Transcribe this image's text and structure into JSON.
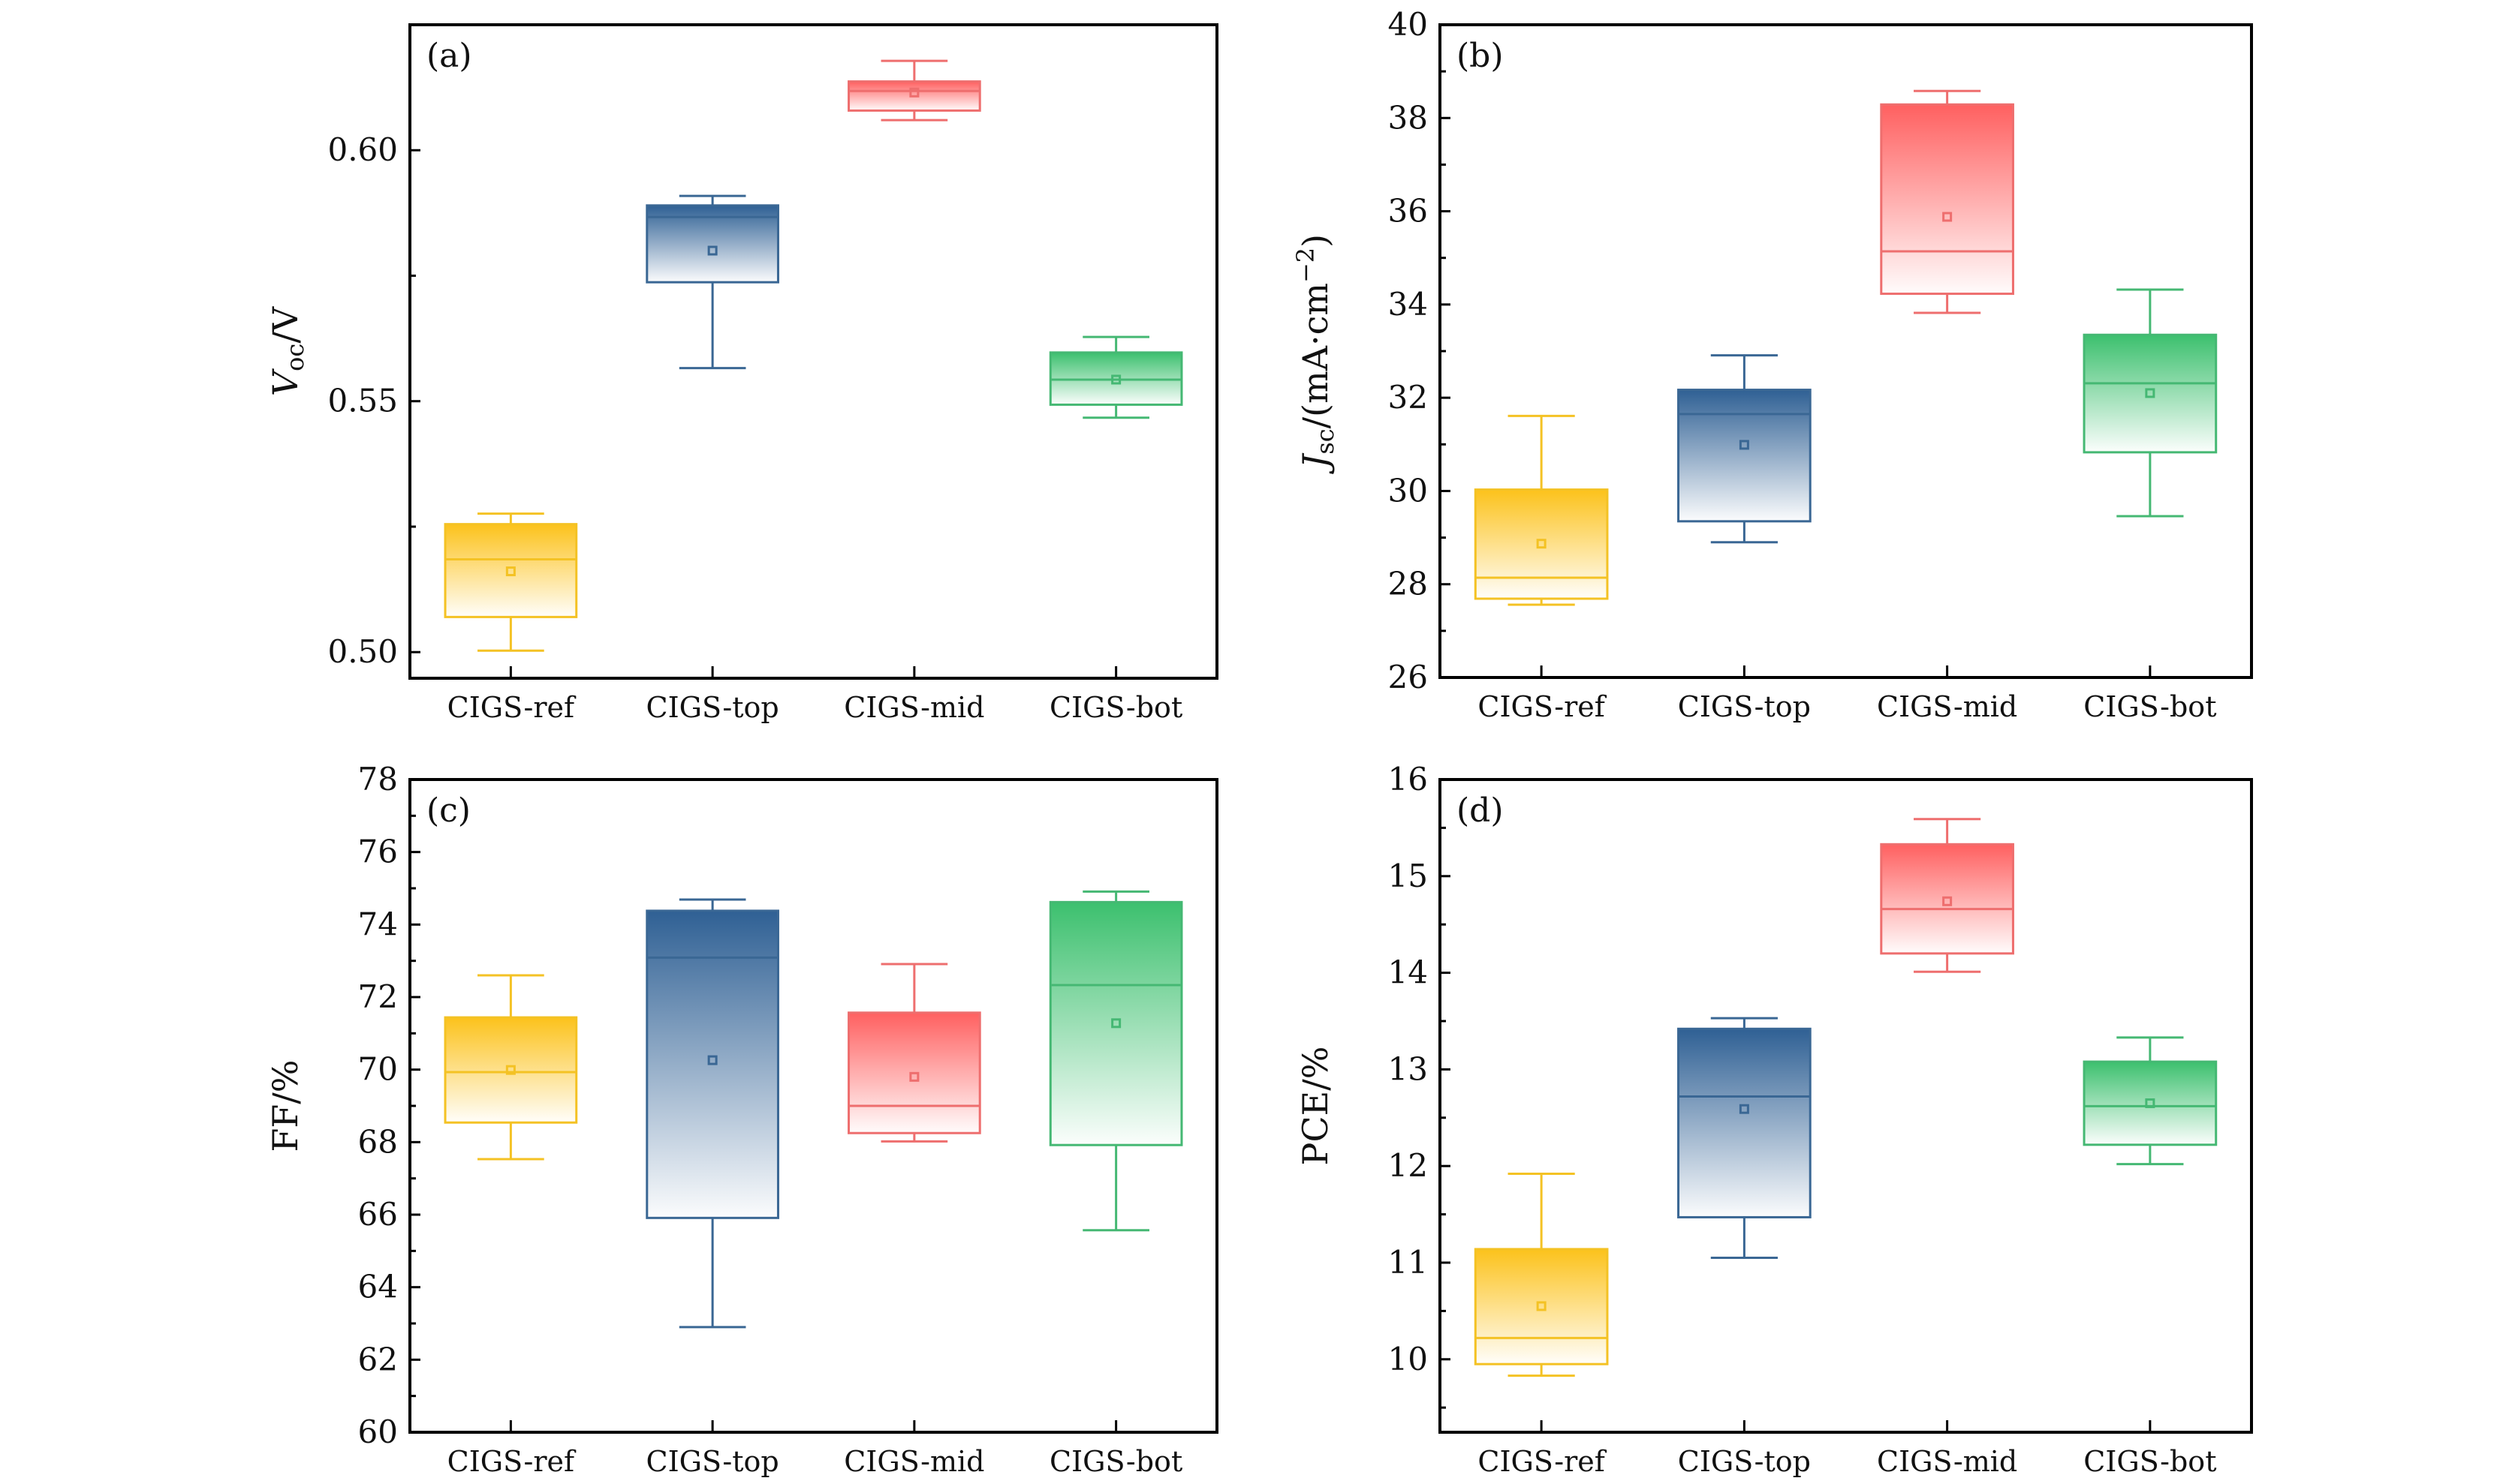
{
  "chart_data": [
    {
      "type": "box",
      "panel_label": "(a)",
      "ylabel": "V_oc/V",
      "ylabel_parts": {
        "main": "V",
        "sub": "oc",
        "rest": "/V"
      },
      "xlabel": "",
      "categories": [
        "CIGS-ref",
        "CIGS-top",
        "CIGS-mid",
        "CIGS-bot"
      ],
      "ylim": [
        0.4948,
        0.625
      ],
      "yticks": [
        0.5,
        0.55,
        0.6
      ],
      "ytick_labels": [
        "0.50",
        "0.55",
        "0.60"
      ],
      "yminor_step": 0.025,
      "grid": false,
      "series": [
        {
          "name": "CIGS-ref",
          "whisker_low": 0.5003,
          "q1": 0.507,
          "median": 0.5185,
          "mean": 0.5161,
          "q3": 0.5255,
          "whisker_high": 0.5276
        },
        {
          "name": "CIGS-top",
          "whisker_low": 0.5566,
          "q1": 0.5737,
          "median": 0.5867,
          "mean": 0.58,
          "q3": 0.589,
          "whisker_high": 0.5909
        },
        {
          "name": "CIGS-mid",
          "whisker_low": 0.606,
          "q1": 0.6079,
          "median": 0.6118,
          "mean": 0.6115,
          "q3": 0.6137,
          "whisker_high": 0.6178
        },
        {
          "name": "CIGS-bot",
          "whisker_low": 0.5467,
          "q1": 0.5493,
          "median": 0.5543,
          "mean": 0.5543,
          "q3": 0.5597,
          "whisker_high": 0.5628
        }
      ]
    },
    {
      "type": "box",
      "panel_label": "(b)",
      "ylabel": "J_sc/(mA·cm^-2)",
      "ylabel_parts": {
        "main": "J",
        "sub": "sc",
        "rest": "/(mA·cm",
        "sup": "−2",
        "end": ")"
      },
      "xlabel": "",
      "categories": [
        "CIGS-ref",
        "CIGS-top",
        "CIGS-mid",
        "CIGS-bot"
      ],
      "ylim": [
        26,
        40
      ],
      "yticks": [
        26,
        28,
        30,
        32,
        34,
        36,
        38,
        40
      ],
      "ytick_labels": [
        "26",
        "28",
        "30",
        "32",
        "34",
        "36",
        "38",
        "40"
      ],
      "yminor_step": 1,
      "grid": false,
      "series": [
        {
          "name": "CIGS-ref",
          "whisker_low": 27.56,
          "q1": 27.69,
          "median": 28.14,
          "mean": 28.87,
          "q3": 30.03,
          "whisker_high": 31.61
        },
        {
          "name": "CIGS-top",
          "whisker_low": 28.9,
          "q1": 29.35,
          "median": 31.65,
          "mean": 30.99,
          "q3": 32.17,
          "whisker_high": 32.91
        },
        {
          "name": "CIGS-mid",
          "whisker_low": 33.82,
          "q1": 34.23,
          "median": 35.14,
          "mean": 35.88,
          "q3": 38.29,
          "whisker_high": 38.58
        },
        {
          "name": "CIGS-bot",
          "whisker_low": 29.46,
          "q1": 30.83,
          "median": 32.31,
          "mean": 32.1,
          "q3": 33.35,
          "whisker_high": 34.32
        }
      ]
    },
    {
      "type": "box",
      "panel_label": "(c)",
      "ylabel": "FF/%",
      "ylabel_parts": {
        "main": "FF/%"
      },
      "xlabel": "",
      "categories": [
        "CIGS-ref",
        "CIGS-top",
        "CIGS-mid",
        "CIGS-bot"
      ],
      "ylim": [
        60,
        78
      ],
      "yticks": [
        60,
        62,
        64,
        66,
        68,
        70,
        72,
        74,
        76,
        78
      ],
      "ytick_labels": [
        "60",
        "62",
        "64",
        "66",
        "68",
        "70",
        "72",
        "74",
        "76",
        "78"
      ],
      "yminor_step": 1,
      "grid": false,
      "series": [
        {
          "name": "CIGS-ref",
          "whisker_low": 67.53,
          "q1": 68.54,
          "median": 69.93,
          "mean": 69.99,
          "q3": 71.44,
          "whisker_high": 72.6
        },
        {
          "name": "CIGS-top",
          "whisker_low": 62.9,
          "q1": 65.91,
          "median": 73.09,
          "mean": 70.26,
          "q3": 74.38,
          "whisker_high": 74.69
        },
        {
          "name": "CIGS-mid",
          "whisker_low": 68.02,
          "q1": 68.25,
          "median": 69.0,
          "mean": 69.8,
          "q3": 71.57,
          "whisker_high": 72.91
        },
        {
          "name": "CIGS-bot",
          "whisker_low": 65.57,
          "q1": 67.92,
          "median": 72.33,
          "mean": 71.28,
          "q3": 74.62,
          "whisker_high": 74.91
        }
      ]
    },
    {
      "type": "box",
      "panel_label": "(d)",
      "ylabel": "PCE/%",
      "ylabel_parts": {
        "main": "PCE/%"
      },
      "xlabel": "",
      "categories": [
        "CIGS-ref",
        "CIGS-top",
        "CIGS-mid",
        "CIGS-bot"
      ],
      "ylim": [
        9.245,
        16
      ],
      "yticks": [
        10,
        11,
        12,
        13,
        14,
        15,
        16
      ],
      "ytick_labels": [
        "10",
        "11",
        "12",
        "13",
        "14",
        "15",
        "16"
      ],
      "yminor_step": 0.5,
      "grid": false,
      "series": [
        {
          "name": "CIGS-ref",
          "whisker_low": 9.83,
          "q1": 9.95,
          "median": 10.22,
          "mean": 10.55,
          "q3": 11.14,
          "whisker_high": 11.92
        },
        {
          "name": "CIGS-top",
          "whisker_low": 11.05,
          "q1": 11.47,
          "median": 12.72,
          "mean": 12.59,
          "q3": 13.42,
          "whisker_high": 13.53
        },
        {
          "name": "CIGS-mid",
          "whisker_low": 14.01,
          "q1": 14.2,
          "median": 14.66,
          "mean": 14.74,
          "q3": 15.33,
          "whisker_high": 15.59
        },
        {
          "name": "CIGS-bot",
          "whisker_low": 12.02,
          "q1": 12.22,
          "median": 12.62,
          "mean": 12.65,
          "q3": 13.08,
          "whisker_high": 13.33
        }
      ]
    }
  ],
  "colors": {
    "CIGS-ref": {
      "fill": "#FCC21B",
      "line": "#F4C224"
    },
    "CIGS-top": {
      "fill": "#2F6094",
      "line": "#3A6794"
    },
    "CIGS-mid": {
      "fill": "#FF6060",
      "line": "#EE6E6E"
    },
    "CIGS-bot": {
      "fill": "#3CC06E",
      "line": "#45B873"
    }
  }
}
